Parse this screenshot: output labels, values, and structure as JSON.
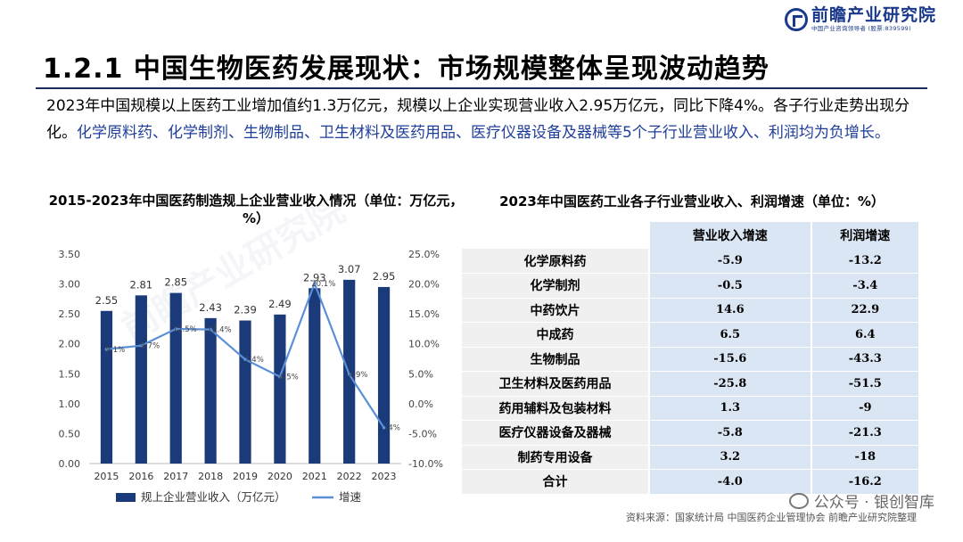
{
  "logo": {
    "title": "前瞻产业研究院",
    "subtitle": "中国产业咨询领导者 (股票:839599)"
  },
  "page_title": "1.2.1 中国生物医药发展现状：市场规模整体呈现波动趋势",
  "intro": {
    "plain": "2023年中国规模以上医药工业增加值约1.3万亿元，规模以上企业实现营业收入2.95万亿元，同比下降4%。各子行业走势出现分化。",
    "highlight": "化学原料药、化学制剂、生物制品、卫生材料及医药用品、医疗仪器设备及器械等5个子行业营业收入、利润均为负增长。"
  },
  "left_chart_title": "2015-2023年中国医药制造规上企业营业收入情况（单位：万亿元，%）",
  "right_table_title": "2023年中国医药工业各子行业营业收入、利润增速（单位：%）",
  "colors": {
    "bar": "#1b3a7a",
    "line": "#5b8fd6",
    "table_value_bg": "#dbe6f4",
    "table_name_bg": "#f0f0f0"
  },
  "chart_data": {
    "type": "bar",
    "categories": [
      "2015",
      "2016",
      "2017",
      "2018",
      "2019",
      "2020",
      "2021",
      "2022",
      "2023"
    ],
    "series": [
      {
        "name": "规上企业营业收入（万亿元）",
        "type": "bar",
        "axis": "left",
        "values": [
          2.55,
          2.81,
          2.85,
          2.43,
          2.39,
          2.49,
          2.93,
          3.07,
          2.95
        ],
        "labels": [
          "2.55",
          "2.81",
          "2.85",
          "2.43",
          "2.39",
          "2.49",
          "2.93",
          "3.07",
          "2.95"
        ]
      },
      {
        "name": "增速",
        "type": "line",
        "axis": "right",
        "values": [
          9.1,
          9.7,
          12.5,
          12.4,
          7.4,
          4.5,
          20.1,
          4.9,
          -4
        ],
        "labels": [
          "9.1%",
          "9.7%",
          "12.5%",
          "12.4%",
          "7.4%",
          "4.5%",
          "20.1%",
          "4.9%",
          "-4%"
        ]
      }
    ],
    "left_axis": {
      "min": 0,
      "max": 3.5,
      "ticks": [
        "0.00",
        "0.50",
        "1.00",
        "1.50",
        "2.00",
        "2.50",
        "3.00",
        "3.50"
      ]
    },
    "right_axis": {
      "min": -10,
      "max": 25,
      "ticks": [
        "-10.0%",
        "-5.0%",
        "0.0%",
        "5.0%",
        "10.0%",
        "15.0%",
        "20.0%",
        "25.0%"
      ]
    },
    "legend_position": "bottom"
  },
  "table": {
    "headers": [
      "",
      "营业收入增速",
      "利润增速"
    ],
    "rows": [
      {
        "name": "化学原料药",
        "revenue": "-5.9",
        "profit": "-13.2"
      },
      {
        "name": "化学制剂",
        "revenue": "-0.5",
        "profit": "-3.4"
      },
      {
        "name": "中药饮片",
        "revenue": "14.6",
        "profit": "22.9"
      },
      {
        "name": "中成药",
        "revenue": "6.5",
        "profit": "6.4"
      },
      {
        "name": "生物制品",
        "revenue": "-15.6",
        "profit": "-43.3"
      },
      {
        "name": "卫生材料及医药用品",
        "revenue": "-25.8",
        "profit": "-51.5"
      },
      {
        "name": "药用辅料及包装材料",
        "revenue": "1.3",
        "profit": "-9"
      },
      {
        "name": "医疗仪器设备及器械",
        "revenue": "-5.8",
        "profit": "-21.3"
      },
      {
        "name": "制药专用设备",
        "revenue": "3.2",
        "profit": "-18"
      },
      {
        "name": "合计",
        "revenue": "-4.0",
        "profit": "-16.2"
      }
    ]
  },
  "source": "资料来源：国家统计局 中国医药企业管理协会 前瞻产业研究院整理",
  "wechat_label": "公众号 · 银创智库"
}
